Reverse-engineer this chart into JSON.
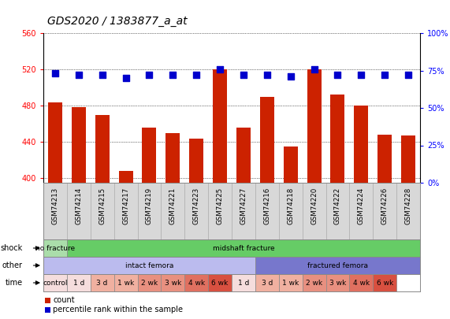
{
  "title": "GDS2020 / 1383877_a_at",
  "samples": [
    "GSM74213",
    "GSM74214",
    "GSM74215",
    "GSM74217",
    "GSM74219",
    "GSM74221",
    "GSM74223",
    "GSM74225",
    "GSM74227",
    "GSM74216",
    "GSM74218",
    "GSM74220",
    "GSM74222",
    "GSM74224",
    "GSM74226",
    "GSM74228"
  ],
  "counts": [
    484,
    478,
    470,
    408,
    456,
    450,
    444,
    520,
    456,
    490,
    435,
    520,
    492,
    480,
    448,
    447
  ],
  "percentile_ranks": [
    73,
    72,
    72,
    70,
    72,
    72,
    72,
    76,
    72,
    72,
    71,
    76,
    72,
    72,
    72,
    72
  ],
  "ylim_left": [
    395,
    560
  ],
  "ylim_right": [
    0,
    100
  ],
  "yticks_left": [
    400,
    440,
    480,
    520,
    560
  ],
  "yticks_right": [
    0,
    25,
    50,
    75,
    100
  ],
  "bar_color": "#cc2200",
  "dot_color": "#0000cc",
  "bar_width": 0.6,
  "dot_size": 35,
  "shock_labels": [
    {
      "text": "no fracture",
      "start": 0,
      "end": 1,
      "color": "#aaddaa"
    },
    {
      "text": "midshaft fracture",
      "start": 1,
      "end": 16,
      "color": "#66cc66"
    }
  ],
  "other_labels": [
    {
      "text": "intact femora",
      "start": 0,
      "end": 9,
      "color": "#bbbbee"
    },
    {
      "text": "fractured femora",
      "start": 9,
      "end": 16,
      "color": "#7777cc"
    }
  ],
  "time_labels": [
    {
      "text": "control",
      "start": 0,
      "end": 1,
      "color": "#f5dddd"
    },
    {
      "text": "1 d",
      "start": 1,
      "end": 2,
      "color": "#f5dddd"
    },
    {
      "text": "3 d",
      "start": 2,
      "end": 3,
      "color": "#f0b0a0"
    },
    {
      "text": "1 wk",
      "start": 3,
      "end": 4,
      "color": "#f0b0a0"
    },
    {
      "text": "2 wk",
      "start": 4,
      "end": 5,
      "color": "#e89080"
    },
    {
      "text": "3 wk",
      "start": 5,
      "end": 6,
      "color": "#e89080"
    },
    {
      "text": "4 wk",
      "start": 6,
      "end": 7,
      "color": "#e07060"
    },
    {
      "text": "6 wk",
      "start": 7,
      "end": 8,
      "color": "#d85040"
    },
    {
      "text": "1 d",
      "start": 8,
      "end": 9,
      "color": "#f5dddd"
    },
    {
      "text": "3 d",
      "start": 9,
      "end": 10,
      "color": "#f0b0a0"
    },
    {
      "text": "1 wk",
      "start": 10,
      "end": 11,
      "color": "#f0b0a0"
    },
    {
      "text": "2 wk",
      "start": 11,
      "end": 12,
      "color": "#e89080"
    },
    {
      "text": "3 wk",
      "start": 12,
      "end": 13,
      "color": "#e89080"
    },
    {
      "text": "4 wk",
      "start": 13,
      "end": 14,
      "color": "#e07060"
    },
    {
      "text": "6 wk",
      "start": 14,
      "end": 15,
      "color": "#d85040"
    }
  ],
  "label_fontsize": 7,
  "tick_fontsize": 7,
  "title_fontsize": 10,
  "bg_color": "#ffffff",
  "gsm_bg_color": "#d8d8d8",
  "gsm_line_color": "#aaaaaa"
}
